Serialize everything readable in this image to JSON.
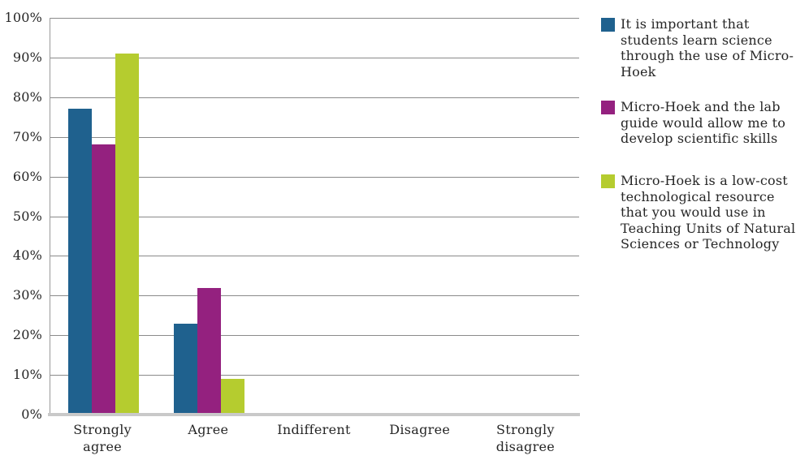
{
  "chart_data": {
    "type": "bar",
    "title": "",
    "xlabel": "",
    "ylabel": "",
    "categories": [
      "Strongly agree",
      "Agree",
      "Indifferent",
      "Disagree",
      "Strongly disagree"
    ],
    "series": [
      {
        "name": "It is important that students learn science through the use of Micro-Hoek",
        "color": "#1F618E",
        "values": [
          77,
          23,
          0,
          0,
          0
        ]
      },
      {
        "name": "Micro-Hoek and the lab guide would allow me to develop scientific skills",
        "color": "#94217F",
        "values": [
          68,
          32,
          0,
          0,
          0
        ]
      },
      {
        "name": "Micro-Hoek is a low-cost technological resource that you would use in Teaching Units of Natural Sciences or Technology",
        "color": "#B5CC2F",
        "values": [
          91,
          9,
          0,
          0,
          0
        ]
      }
    ],
    "ylim": [
      0,
      100
    ],
    "yticks": [
      "0%",
      "10%",
      "20%",
      "30%",
      "40%",
      "50%",
      "60%",
      "70%",
      "80%",
      "90%",
      "100%"
    ],
    "grid": "horizontal",
    "legend_position": "right"
  },
  "colors": {
    "series_blue": "#1F618E",
    "series_magenta": "#94217F",
    "series_green": "#B5CC2F",
    "gridline": "#8A8A8A",
    "axis_baseline": "#C9C9C9",
    "text": "#262626"
  }
}
